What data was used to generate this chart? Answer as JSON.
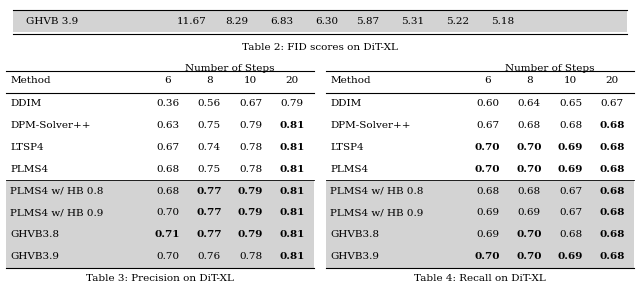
{
  "top_row": {
    "label": "GHVB 3.9",
    "values": [
      "11.67",
      "8.29",
      "6.83",
      "6.30",
      "5.87",
      "5.31",
      "5.22",
      "5.18"
    ],
    "caption": "Table 2: FID scores on DiT-XL",
    "highlight": true
  },
  "table3": {
    "caption": "Table 3: Precision on DiT-XL",
    "header_span": "Number of Steps",
    "col_headers": [
      "6",
      "8",
      "10",
      "20"
    ],
    "row_label_header": "Method",
    "rows": [
      {
        "label": "DDIM",
        "values": [
          "0.36",
          "0.56",
          "0.67",
          "0.79"
        ],
        "bold": [
          false,
          false,
          false,
          false
        ],
        "highlight": false
      },
      {
        "label": "DPM-Solver++",
        "values": [
          "0.63",
          "0.75",
          "0.79",
          "0.81"
        ],
        "bold": [
          false,
          false,
          false,
          true
        ],
        "highlight": false
      },
      {
        "label": "LTSP4",
        "values": [
          "0.67",
          "0.74",
          "0.78",
          "0.81"
        ],
        "bold": [
          false,
          false,
          false,
          true
        ],
        "highlight": false
      },
      {
        "label": "PLMS4",
        "values": [
          "0.68",
          "0.75",
          "0.78",
          "0.81"
        ],
        "bold": [
          false,
          false,
          false,
          true
        ],
        "highlight": false
      },
      {
        "label": "PLMS4 w/ HB 0.8",
        "values": [
          "0.68",
          "0.77",
          "0.79",
          "0.81"
        ],
        "bold": [
          false,
          true,
          true,
          true
        ],
        "highlight": true
      },
      {
        "label": "PLMS4 w/ HB 0.9",
        "values": [
          "0.70",
          "0.77",
          "0.79",
          "0.81"
        ],
        "bold": [
          false,
          true,
          true,
          true
        ],
        "highlight": true
      },
      {
        "label": "GHVB3.8",
        "values": [
          "0.71",
          "0.77",
          "0.79",
          "0.81"
        ],
        "bold": [
          true,
          true,
          true,
          true
        ],
        "highlight": true
      },
      {
        "label": "GHVB3.9",
        "values": [
          "0.70",
          "0.76",
          "0.78",
          "0.81"
        ],
        "bold": [
          false,
          false,
          false,
          true
        ],
        "highlight": true
      }
    ]
  },
  "table4": {
    "caption": "Table 4: Recall on DiT-XL",
    "header_span": "Number of Steps",
    "col_headers": [
      "6",
      "8",
      "10",
      "20"
    ],
    "row_label_header": "Method",
    "rows": [
      {
        "label": "DDIM",
        "values": [
          "0.60",
          "0.64",
          "0.65",
          "0.67"
        ],
        "bold": [
          false,
          false,
          false,
          false
        ],
        "highlight": false
      },
      {
        "label": "DPM-Solver++",
        "values": [
          "0.67",
          "0.68",
          "0.68",
          "0.68"
        ],
        "bold": [
          false,
          false,
          false,
          true
        ],
        "highlight": false
      },
      {
        "label": "LTSP4",
        "values": [
          "0.70",
          "0.70",
          "0.69",
          "0.68"
        ],
        "bold": [
          true,
          true,
          true,
          true
        ],
        "highlight": false
      },
      {
        "label": "PLMS4",
        "values": [
          "0.70",
          "0.70",
          "0.69",
          "0.68"
        ],
        "bold": [
          true,
          true,
          true,
          true
        ],
        "highlight": false
      },
      {
        "label": "PLMS4 w/ HB 0.8",
        "values": [
          "0.68",
          "0.68",
          "0.67",
          "0.68"
        ],
        "bold": [
          false,
          false,
          false,
          true
        ],
        "highlight": true
      },
      {
        "label": "PLMS4 w/ HB 0.9",
        "values": [
          "0.69",
          "0.69",
          "0.67",
          "0.68"
        ],
        "bold": [
          false,
          false,
          false,
          true
        ],
        "highlight": true
      },
      {
        "label": "GHVB3.8",
        "values": [
          "0.69",
          "0.70",
          "0.68",
          "0.68"
        ],
        "bold": [
          false,
          true,
          false,
          true
        ],
        "highlight": true
      },
      {
        "label": "GHVB3.9",
        "values": [
          "0.70",
          "0.70",
          "0.69",
          "0.68"
        ],
        "bold": [
          true,
          true,
          true,
          true
        ],
        "highlight": true
      }
    ]
  },
  "highlight_color": "#d3d3d3",
  "bg_color": "#ffffff",
  "font_size": 7.5,
  "caption_font_size": 7.5
}
